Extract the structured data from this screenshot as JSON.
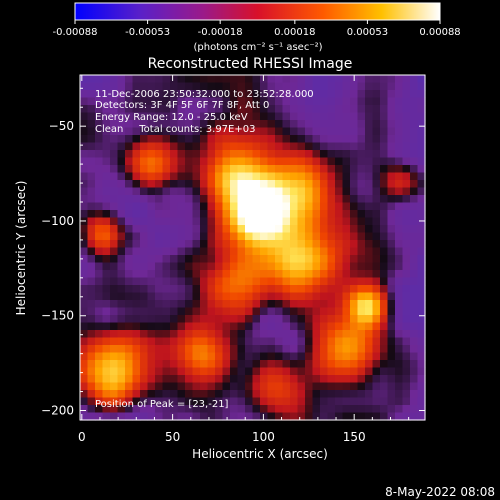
{
  "colorbar": {
    "ticks": [
      -0.00088,
      -0.00053,
      -0.00018,
      0.00018,
      0.00053,
      0.00088
    ],
    "tick_labels": [
      "-0.00088",
      "-0.00053",
      "-0.00018",
      "0.00018",
      "0.00053",
      "0.00088"
    ],
    "units_label": "(photons cm⁻² s⁻¹ asec⁻²)",
    "range": [
      -0.00088,
      0.00088
    ]
  },
  "chart_data": {
    "type": "heatmap",
    "title": "Reconstructed RHESSI Image",
    "xlabel": "Heliocentric X (arcsec)",
    "ylabel": "Heliocentric Y (arcsec)",
    "xlim": [
      -1,
      189
    ],
    "ylim": [
      -205,
      -23
    ],
    "xticks": [
      0,
      50,
      100,
      150
    ],
    "yticks": [
      -50,
      -100,
      -150,
      -200
    ],
    "colormap": "rainbow-to-hot (blue, purple, red, orange, yellow, white)",
    "annotations": {
      "time_range": "11-Dec-2006 23:50:32.000 to 23:52:28.000",
      "detectors": "Detectors: 3F 4F 5F 6F 7F 8F, Att 0",
      "energy": "Energy Range: 12.0 - 25.0 keV",
      "method": "Clean     Total counts: 3.97E+03",
      "peak": "Position of Peak = [23,-21]"
    },
    "peak_position": [
      23,
      -21
    ]
  },
  "timestamp": "8-May-2022 08:08"
}
